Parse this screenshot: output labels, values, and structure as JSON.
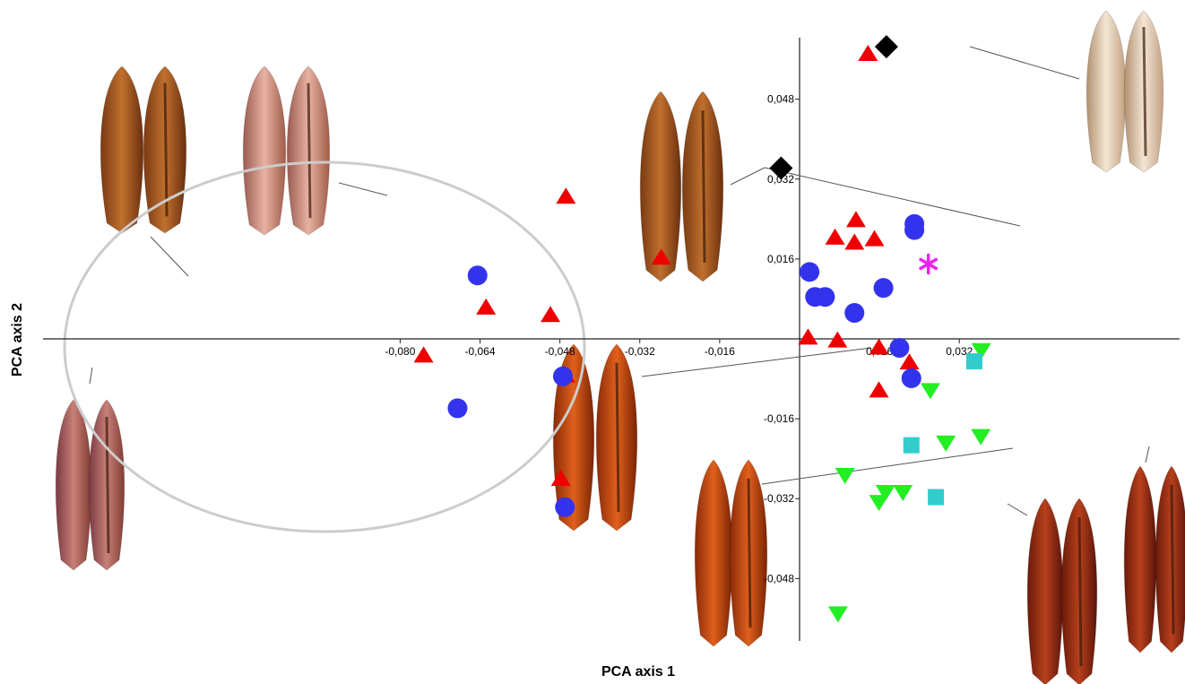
{
  "chart_data": {
    "type": "scatter",
    "xlabel": "PCA axis 1",
    "ylabel": "PCA axis 2",
    "xlim": [
      -0.08,
      0.0395
    ],
    "ylim": [
      -0.06,
      0.0597
    ],
    "x_ticks": [
      -0.08,
      -0.064,
      -0.048,
      -0.032,
      -0.016,
      0.016,
      0.032
    ],
    "x_tick_labels": [
      "-0,080",
      "-0,064",
      "-0,048",
      "-0,032",
      "-0,016",
      "0,016",
      "0,032"
    ],
    "y_ticks": [
      0.048,
      0.032,
      0.016,
      -0.016,
      -0.032,
      -0.048
    ],
    "y_tick_labels": [
      "0,048",
      "0,032",
      "0,016",
      "-0,016",
      "-0,032",
      "-0,048"
    ],
    "grid": false,
    "legend": "none",
    "series": [
      {
        "marker": "triangle-up",
        "color": "#ee0000",
        "points": [
          [
            0.0137,
            0.0571
          ],
          [
            -0.0468,
            0.0285
          ],
          [
            -0.0277,
            0.0163
          ],
          [
            -0.0628,
            0.0063
          ],
          [
            -0.0499,
            0.0048
          ],
          [
            0.0113,
            0.0238
          ],
          [
            0.0071,
            0.0203
          ],
          [
            0.011,
            0.0193
          ],
          [
            0.015,
            0.02
          ],
          [
            0.0017,
            0.0003
          ],
          [
            0.0076,
            -0.0003
          ],
          [
            0.0159,
            -0.0017
          ],
          [
            0.022,
            -0.0047
          ],
          [
            0.0159,
            -0.0103
          ],
          [
            -0.0469,
            -0.0073
          ],
          [
            -0.0753,
            -0.0033
          ],
          [
            -0.0478,
            -0.028
          ]
        ]
      },
      {
        "marker": "circle",
        "color": "#3333ee",
        "points": [
          [
            -0.0645,
            0.0127
          ],
          [
            0.023,
            0.023
          ],
          [
            0.023,
            0.0218
          ],
          [
            0.002,
            0.0134
          ],
          [
            0.0031,
            0.0084
          ],
          [
            0.0051,
            0.0084
          ],
          [
            0.011,
            0.0052
          ],
          [
            0.0168,
            0.0102
          ],
          [
            0.02,
            -0.0018
          ],
          [
            0.0224,
            -0.0079
          ],
          [
            -0.0474,
            -0.0075
          ],
          [
            -0.0685,
            -0.0139
          ],
          [
            -0.047,
            -0.0337
          ]
        ]
      },
      {
        "marker": "diamond",
        "color": "#000000",
        "points": [
          [
            0.0174,
            0.0585
          ],
          [
            -0.0037,
            0.0342
          ]
        ]
      },
      {
        "marker": "triangle-down",
        "color": "#22ee22",
        "points": [
          [
            0.0262,
            -0.0103
          ],
          [
            0.0293,
            -0.0208
          ],
          [
            0.0363,
            -0.0195
          ],
          [
            0.0364,
            -0.0023
          ],
          [
            0.0091,
            -0.0273
          ],
          [
            0.0172,
            -0.0307
          ],
          [
            0.0159,
            -0.0327
          ],
          [
            0.0207,
            -0.0307
          ],
          [
            0.0077,
            -0.055
          ]
        ]
      },
      {
        "marker": "square",
        "color": "#33cccc",
        "points": [
          [
            0.035,
            -0.0045
          ],
          [
            0.0224,
            -0.0213
          ],
          [
            0.0273,
            -0.0317
          ]
        ]
      },
      {
        "marker": "asterisk",
        "color": "#ee22ee",
        "points": [
          [
            0.0258,
            0.015
          ]
        ]
      }
    ]
  }
}
